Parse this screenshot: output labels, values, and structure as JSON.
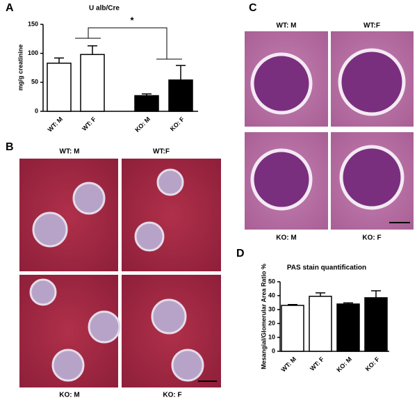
{
  "chart_data": [
    {
      "type": "bar",
      "panel_label": "A",
      "title": "U alb/Cre",
      "y_label": "mg/g creatinine",
      "categories": [
        "WT: M",
        "WT: F",
        "KO: M",
        "KO: F"
      ],
      "values": [
        83,
        98,
        27,
        54
      ],
      "errors": [
        9,
        15,
        3,
        25
      ],
      "colors": [
        "#ffffff",
        "#ffffff",
        "#000000",
        "#000000"
      ],
      "ylim": [
        0,
        150
      ],
      "yticks": [
        0,
        50,
        100,
        150
      ],
      "annotation": "*"
    },
    {
      "type": "bar",
      "panel_label": "D",
      "title": "PAS stain quantification",
      "y_label": "Mesangial/Glomerular Area Ratio %",
      "categories": [
        "WT: M",
        "WT: F",
        "KO: M",
        "KO: F"
      ],
      "values": [
        33,
        39.5,
        34,
        38.5
      ],
      "errors": [
        0.6,
        2.5,
        0.8,
        5
      ],
      "colors": [
        "#ffffff",
        "#ffffff",
        "#000000",
        "#000000"
      ],
      "ylim": [
        0,
        50
      ],
      "yticks": [
        0,
        10,
        20,
        30,
        40,
        50
      ]
    }
  ],
  "image_panels": [
    {
      "panel_label": "B",
      "captions": [
        "WT: M",
        "WT:F",
        "KO: M",
        "KO: F"
      ]
    },
    {
      "panel_label": "C",
      "captions": [
        "WT: M",
        "WT:F",
        "KO: M",
        "KO: F"
      ]
    }
  ]
}
